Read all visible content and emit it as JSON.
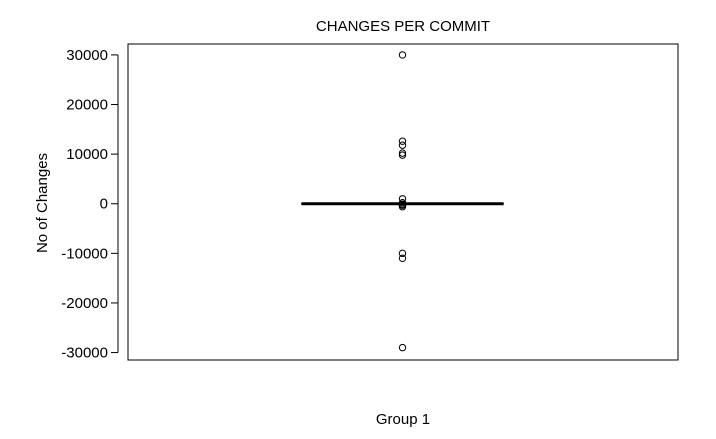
{
  "chart_data": {
    "type": "box",
    "title": "CHANGES PER COMMIT",
    "xlabel": "Group 1",
    "ylabel": "No of Changes",
    "ylim": [
      -31500,
      32200
    ],
    "yticks": [
      30000,
      20000,
      10000,
      0,
      -10000,
      -20000,
      -30000
    ],
    "yticklabels": [
      "30000",
      "20000",
      "10000",
      "0",
      "-10000",
      "-20000",
      "-30000"
    ],
    "grid": false,
    "boxes": [
      {
        "name": "Group 1",
        "median": 0,
        "q1": 0,
        "q3": 0,
        "whisker_low": 0,
        "whisker_high": 0,
        "outliers": [
          30000,
          12600,
          11800,
          10200,
          9800,
          1000,
          200,
          -100,
          -300,
          -600,
          -10000,
          -11000,
          -29000
        ]
      }
    ],
    "colors": {
      "box": "#000000",
      "outlier": "#000000",
      "background": "#ffffff"
    }
  }
}
